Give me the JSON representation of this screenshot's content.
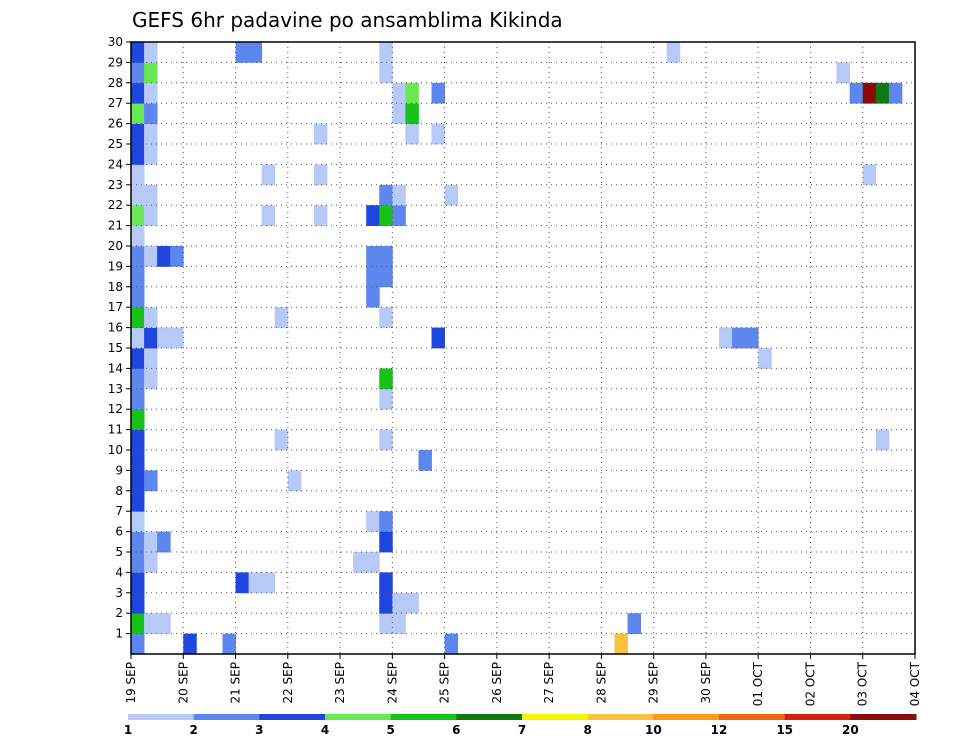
{
  "chart_data": {
    "type": "heatmap",
    "title": "GEFS 6hr padavine po ansamblima Kikinda",
    "xlabel": "",
    "ylabel": "",
    "x_tick_labels": [
      "19 SEP",
      "20 SEP",
      "21 SEP",
      "22 SEP",
      "23 SEP",
      "24 SEP",
      "25 SEP",
      "26 SEP",
      "27 SEP",
      "28 SEP",
      "29 SEP",
      "30 SEP",
      "01 OCT",
      "02 OCT",
      "03 OCT",
      "04 OCT"
    ],
    "x_range_days": [
      0,
      15
    ],
    "steps_per_day": 4,
    "y_tick_labels": [
      "1",
      "2",
      "3",
      "4",
      "5",
      "6",
      "7",
      "8",
      "9",
      "10",
      "11",
      "12",
      "13",
      "14",
      "15",
      "16",
      "17",
      "18",
      "19",
      "20",
      "21",
      "22",
      "23",
      "24",
      "25",
      "26",
      "27",
      "28",
      "29",
      "30"
    ],
    "y_range": [
      0,
      30
    ],
    "grid": true,
    "colorbar": {
      "tick_labels": [
        "1",
        "2",
        "3",
        "4",
        "5",
        "6",
        "7",
        "8",
        "10",
        "12",
        "15",
        "20"
      ],
      "bins": [
        {
          "level": 1,
          "color": "#b7c9f7"
        },
        {
          "level": 2,
          "color": "#5e86ef"
        },
        {
          "level": 3,
          "color": "#1f47e0"
        },
        {
          "level": 4,
          "color": "#69e853"
        },
        {
          "level": 5,
          "color": "#18c318"
        },
        {
          "level": 6,
          "color": "#0f7a0f"
        },
        {
          "level": 7,
          "color": "#f5f500"
        },
        {
          "level": 8,
          "color": "#fbc13c"
        },
        {
          "level": 10,
          "color": "#fb9a1c"
        },
        {
          "level": 12,
          "color": "#f06a0c"
        },
        {
          "level": 15,
          "color": "#d61f0c"
        },
        {
          "level": 20,
          "color": "#8b0a0a"
        }
      ]
    },
    "cells_note": "each cell = [member, 6h step index from 19 SEP 00z, precipitation bin level]",
    "cells": [
      [
        0,
        0,
        2
      ],
      [
        0,
        4,
        3
      ],
      [
        0,
        7,
        2
      ],
      [
        0,
        24,
        2
      ],
      [
        0,
        37,
        8
      ],
      [
        1,
        0,
        5
      ],
      [
        1,
        1,
        1
      ],
      [
        1,
        2,
        1
      ],
      [
        1,
        19,
        1
      ],
      [
        1,
        20,
        1
      ],
      [
        1,
        38,
        2
      ],
      [
        2,
        0,
        3
      ],
      [
        2,
        19,
        3
      ],
      [
        2,
        20,
        1
      ],
      [
        2,
        21,
        1
      ],
      [
        3,
        0,
        3
      ],
      [
        3,
        8,
        3
      ],
      [
        3,
        9,
        1
      ],
      [
        3,
        10,
        1
      ],
      [
        3,
        19,
        3
      ],
      [
        4,
        0,
        2
      ],
      [
        4,
        1,
        1
      ],
      [
        4,
        17,
        1
      ],
      [
        4,
        18,
        1
      ],
      [
        5,
        0,
        2
      ],
      [
        5,
        1,
        1
      ],
      [
        5,
        2,
        2
      ],
      [
        5,
        19,
        3
      ],
      [
        6,
        0,
        1
      ],
      [
        6,
        18,
        1
      ],
      [
        6,
        19,
        2
      ],
      [
        7,
        0,
        3
      ],
      [
        8,
        0,
        3
      ],
      [
        8,
        1,
        2
      ],
      [
        8,
        12,
        1
      ],
      [
        9,
        0,
        3
      ],
      [
        9,
        22,
        2
      ],
      [
        10,
        0,
        3
      ],
      [
        10,
        11,
        1
      ],
      [
        10,
        19,
        1
      ],
      [
        10,
        57,
        1
      ],
      [
        11,
        0,
        5
      ],
      [
        12,
        0,
        2
      ],
      [
        12,
        19,
        1
      ],
      [
        13,
        0,
        2
      ],
      [
        13,
        1,
        1
      ],
      [
        13,
        19,
        5
      ],
      [
        14,
        0,
        3
      ],
      [
        14,
        1,
        1
      ],
      [
        14,
        48,
        1
      ],
      [
        15,
        0,
        1
      ],
      [
        15,
        1,
        3
      ],
      [
        15,
        2,
        1
      ],
      [
        15,
        3,
        1
      ],
      [
        15,
        23,
        3
      ],
      [
        15,
        45,
        1
      ],
      [
        15,
        46,
        2
      ],
      [
        15,
        47,
        2
      ],
      [
        16,
        0,
        5
      ],
      [
        16,
        1,
        1
      ],
      [
        16,
        11,
        1
      ],
      [
        16,
        19,
        1
      ],
      [
        17,
        0,
        2
      ],
      [
        17,
        18,
        2
      ],
      [
        18,
        0,
        2
      ],
      [
        18,
        18,
        2
      ],
      [
        18,
        19,
        2
      ],
      [
        19,
        0,
        2
      ],
      [
        19,
        1,
        1
      ],
      [
        19,
        2,
        3
      ],
      [
        19,
        3,
        2
      ],
      [
        19,
        18,
        2
      ],
      [
        19,
        19,
        2
      ],
      [
        20,
        0,
        1
      ],
      [
        21,
        0,
        4
      ],
      [
        21,
        1,
        1
      ],
      [
        21,
        10,
        1
      ],
      [
        21,
        14,
        1
      ],
      [
        21,
        18,
        3
      ],
      [
        21,
        19,
        5
      ],
      [
        21,
        20,
        2
      ],
      [
        22,
        0,
        1
      ],
      [
        22,
        1,
        1
      ],
      [
        22,
        19,
        2
      ],
      [
        22,
        20,
        1
      ],
      [
        22,
        24,
        1
      ],
      [
        23,
        0,
        1
      ],
      [
        23,
        10,
        1
      ],
      [
        23,
        14,
        1
      ],
      [
        23,
        56,
        1
      ],
      [
        24,
        0,
        3
      ],
      [
        24,
        1,
        1
      ],
      [
        25,
        0,
        3
      ],
      [
        25,
        1,
        1
      ],
      [
        25,
        14,
        1
      ],
      [
        25,
        21,
        1
      ],
      [
        25,
        23,
        1
      ],
      [
        26,
        0,
        4
      ],
      [
        26,
        1,
        2
      ],
      [
        26,
        20,
        1
      ],
      [
        26,
        21,
        5
      ],
      [
        27,
        0,
        3
      ],
      [
        27,
        1,
        1
      ],
      [
        27,
        20,
        1
      ],
      [
        27,
        21,
        4
      ],
      [
        27,
        23,
        2
      ],
      [
        27,
        55,
        2
      ],
      [
        27,
        56,
        20
      ],
      [
        27,
        57,
        6
      ],
      [
        27,
        58,
        2
      ],
      [
        28,
        0,
        2
      ],
      [
        28,
        1,
        4
      ],
      [
        28,
        19,
        1
      ],
      [
        28,
        54,
        1
      ],
      [
        29,
        0,
        3
      ],
      [
        29,
        1,
        1
      ],
      [
        29,
        8,
        2
      ],
      [
        29,
        9,
        2
      ],
      [
        29,
        19,
        1
      ],
      [
        29,
        41,
        1
      ]
    ]
  }
}
